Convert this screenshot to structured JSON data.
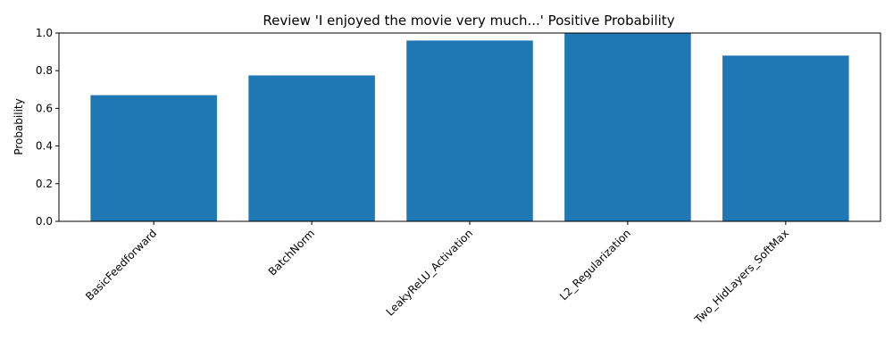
{
  "chart_data": {
    "type": "bar",
    "title": "Review 'I enjoyed the movie very much...' Positive Probability",
    "xlabel": "",
    "ylabel": "Probability",
    "categories": [
      "BasicFeedforward",
      "BatchNorm",
      "LeakyReLU_Activation",
      "L2_Regularization",
      "Two_HidLayers_SoftMax"
    ],
    "values": [
      0.67,
      0.775,
      0.96,
      1.0,
      0.88
    ],
    "ylim": [
      0,
      1.0
    ],
    "yticks": [
      0.0,
      0.2,
      0.4,
      0.6,
      0.8,
      1.0
    ],
    "ytick_labels": [
      "0.0",
      "0.2",
      "0.4",
      "0.6",
      "0.8",
      "1.0"
    ],
    "bar_color": "#1f77b4",
    "grid": false,
    "legend": "none"
  }
}
